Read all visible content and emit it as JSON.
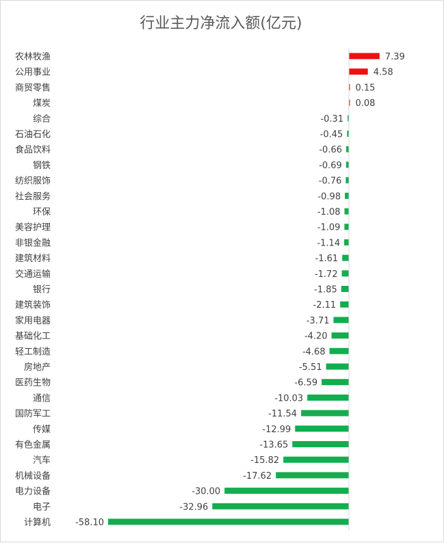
{
  "chart_data": {
    "type": "bar",
    "orientation": "horizontal",
    "title": "行业主力净流入额(亿元)",
    "xlabel": "",
    "ylabel": "",
    "categories": [
      "农林牧渔",
      "公用事业",
      "商贸零售",
      "煤炭",
      "综合",
      "石油石化",
      "食品饮料",
      "钢铁",
      "纺织服饰",
      "社会服务",
      "环保",
      "美容护理",
      "非银金融",
      "建筑材料",
      "交通运输",
      "银行",
      "建筑装饰",
      "家用电器",
      "基础化工",
      "轻工制造",
      "房地产",
      "医药生物",
      "通信",
      "国防军工",
      "传媒",
      "有色金属",
      "汽车",
      "机械设备",
      "电力设备",
      "电子",
      "计算机"
    ],
    "values": [
      7.39,
      4.58,
      0.15,
      0.08,
      -0.31,
      -0.45,
      -0.66,
      -0.69,
      -0.76,
      -0.98,
      -1.08,
      -1.09,
      -1.14,
      -1.61,
      -1.72,
      -1.85,
      -2.11,
      -3.71,
      -4.2,
      -4.68,
      -5.51,
      -6.59,
      -10.03,
      -11.54,
      -12.99,
      -13.65,
      -15.82,
      -17.62,
      -30.0,
      -32.96,
      -58.1
    ],
    "labels": [
      "7.39",
      "4.58",
      "0.15",
      "0.08",
      "-0.31",
      "-0.45",
      "-0.66",
      "-0.69",
      "-0.76",
      "-0.98",
      "-1.08",
      "-1.09",
      "-1.14",
      "-1.61",
      "-1.72",
      "-1.85",
      "-2.11",
      "-3.71",
      "-4.20",
      "-4.68",
      "-5.51",
      "-6.59",
      "-10.03",
      "-11.54",
      "-12.99",
      "-13.65",
      "-15.82",
      "-17.62",
      "-30.00",
      "-32.96",
      "-58.10"
    ],
    "xlim": [
      -58.1,
      7.39
    ],
    "grid": false,
    "legend": "none",
    "colors": {
      "positive": "#ee1111",
      "negative": "#13ad4f",
      "axis": "#d9d9d9"
    }
  }
}
